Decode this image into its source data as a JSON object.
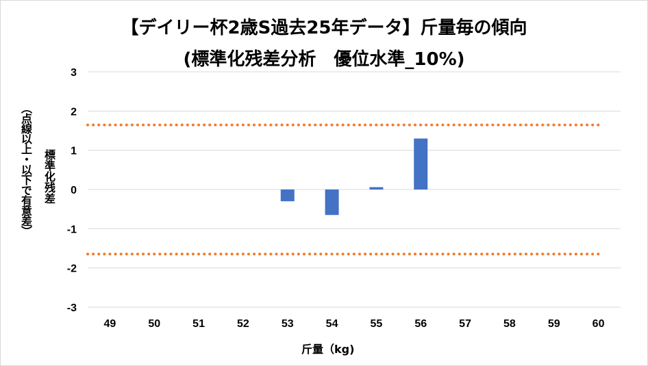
{
  "chart_data": {
    "type": "bar",
    "title": "【デイリー杯2歳S過去25年データ】斤量毎の傾向",
    "subtitle": "(標準化残差分析　優位水準_10%)",
    "xlabel": "斤量（kg)",
    "ylabel": "標準化残差",
    "ylabel_note": "（点線以上・以下で有意差）",
    "categories": [
      "49",
      "50",
      "51",
      "52",
      "53",
      "54",
      "55",
      "56",
      "57",
      "58",
      "59",
      "60"
    ],
    "values": [
      null,
      null,
      null,
      null,
      -0.3,
      -0.65,
      0.06,
      1.3,
      null,
      null,
      null,
      null
    ],
    "ylim": [
      -3,
      3
    ],
    "yticks": [
      "3",
      "2",
      "1",
      "0",
      "-1",
      "-2",
      "-3"
    ],
    "thresholds": [
      1.645,
      -1.645
    ],
    "grid": true,
    "colors": {
      "bar": "#4472c4",
      "threshold": "#ed7d31",
      "grid": "#d9d9d9"
    }
  }
}
